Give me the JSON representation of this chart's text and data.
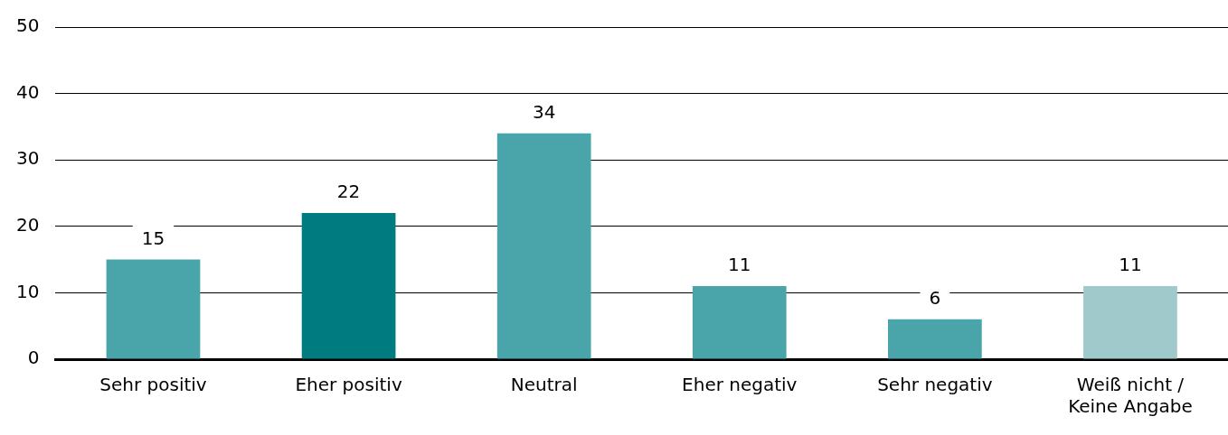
{
  "chart_data": {
    "type": "bar",
    "categories": [
      "Sehr positiv",
      "Eher positiv",
      "Neutral",
      "Eher negativ",
      "Sehr negativ",
      "Weiß nicht / Keine Angabe"
    ],
    "values": [
      15,
      22,
      34,
      11,
      6,
      11
    ],
    "colors": [
      "#4aa5ab",
      "#007b7f",
      "#4aa5ab",
      "#4aa5ab",
      "#4aa5ab",
      "#9fc9cb"
    ],
    "ylim": [
      0,
      50
    ],
    "yticks": [
      0,
      10,
      20,
      30,
      40,
      50
    ],
    "grid": "y",
    "data_labels": true,
    "legend": false
  }
}
